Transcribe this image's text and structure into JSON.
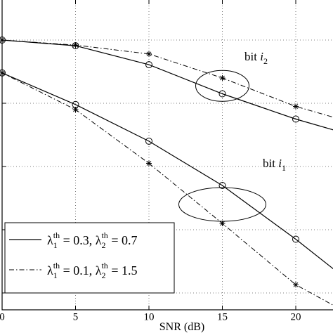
{
  "chart_data": {
    "type": "line",
    "xlabel": "SNR (dB)",
    "x_tick_labels": [
      "0",
      "5",
      "10",
      "15",
      "20"
    ],
    "xlim": [
      0,
      23
    ],
    "ylim_log10": [
      -4.1,
      0.45
    ],
    "ylabel": "",
    "grid": true,
    "x_scale": "linear",
    "y_scale": "log",
    "legend_position": "bottom-left",
    "legend_entries": [
      {
        "style": "solid",
        "rows": [
          {
            "sym": "λ",
            "sub": "1",
            "sup": "th",
            "val": " = 0.3, "
          },
          {
            "sym": "λ",
            "sub": "2",
            "sup": "th",
            "val": " = 0.7"
          }
        ]
      },
      {
        "style": "dashdot",
        "rows": [
          {
            "sym": "λ",
            "sub": "1",
            "sup": "th",
            "val": " = 0.1, "
          },
          {
            "sym": "λ",
            "sub": "2",
            "sup": "th",
            "val": " = 1.5"
          }
        ]
      }
    ],
    "series": [
      {
        "marker": "circle",
        "style": "solid",
        "x": [
          0,
          5,
          10,
          15,
          20,
          23
        ],
        "log10_y": [
          0,
          -0.09,
          -0.39,
          -0.85,
          -1.25,
          -1.45
        ]
      },
      {
        "marker": "star",
        "style": "dashdot",
        "x": [
          0,
          5,
          10,
          15,
          20,
          23
        ],
        "log10_y": [
          0,
          -0.08,
          -0.22,
          -0.6,
          -1.05,
          -1.25
        ]
      },
      {
        "marker": "circle",
        "style": "solid",
        "x": [
          0,
          5,
          10,
          15,
          20,
          23
        ],
        "log10_y": [
          -0.52,
          -1.02,
          -1.6,
          -2.3,
          -3.15,
          -3.7
        ]
      },
      {
        "marker": "star",
        "style": "dashdot",
        "x": [
          0,
          5,
          10,
          15,
          20,
          23
        ],
        "log10_y": [
          -0.52,
          -1.1,
          -1.95,
          -2.9,
          -3.87,
          -4.25
        ]
      }
    ],
    "annotations": [
      {
        "text": "bit ",
        "var": "i",
        "sub": "2"
      },
      {
        "text": "bit ",
        "var": "i",
        "sub": "1"
      }
    ]
  }
}
